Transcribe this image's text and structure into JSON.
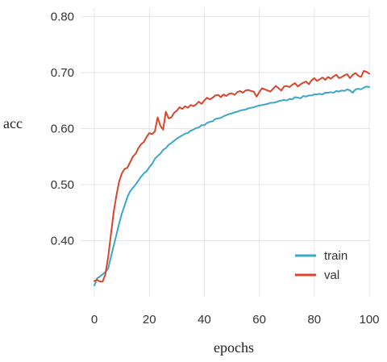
{
  "chart_data": {
    "type": "line",
    "xlabel": "epochs",
    "ylabel": "acc",
    "xlim": [
      -5,
      100
    ],
    "ylim": [
      0.3,
      0.815
    ],
    "xticks": [
      0,
      20,
      40,
      60,
      80,
      100
    ],
    "yticks": [
      0.4,
      0.5,
      0.6,
      0.7,
      0.8
    ],
    "xtick_labels": [
      "0",
      "20",
      "40",
      "60",
      "80",
      "100"
    ],
    "ytick_labels": [
      "0.40",
      "0.50",
      "0.60",
      "0.70",
      "0.80"
    ],
    "grid": true,
    "legend": "bottom-right",
    "series": [
      {
        "name": "train",
        "color": "#3aa7c9",
        "x": [
          0,
          1,
          2,
          3,
          4,
          5,
          6,
          7,
          8,
          9,
          10,
          11,
          12,
          13,
          14,
          15,
          16,
          17,
          18,
          19,
          20,
          21,
          22,
          23,
          24,
          25,
          26,
          27,
          28,
          29,
          30,
          31,
          32,
          33,
          34,
          35,
          36,
          37,
          38,
          39,
          40,
          41,
          42,
          43,
          44,
          45,
          46,
          47,
          48,
          49,
          50,
          51,
          52,
          53,
          54,
          55,
          56,
          57,
          58,
          59,
          60,
          61,
          62,
          63,
          64,
          65,
          66,
          67,
          68,
          69,
          70,
          71,
          72,
          73,
          74,
          75,
          76,
          77,
          78,
          79,
          80,
          81,
          82,
          83,
          84,
          85,
          86,
          87,
          88,
          89,
          90,
          91,
          92,
          93,
          94,
          95,
          96,
          97,
          98,
          99,
          100
        ],
        "y": [
          0.32,
          0.333,
          0.336,
          0.34,
          0.344,
          0.35,
          0.37,
          0.39,
          0.41,
          0.43,
          0.448,
          0.463,
          0.478,
          0.488,
          0.494,
          0.5,
          0.507,
          0.514,
          0.52,
          0.524,
          0.531,
          0.537,
          0.546,
          0.551,
          0.555,
          0.562,
          0.565,
          0.571,
          0.574,
          0.578,
          0.582,
          0.585,
          0.588,
          0.591,
          0.592,
          0.596,
          0.598,
          0.601,
          0.602,
          0.606,
          0.606,
          0.61,
          0.612,
          0.613,
          0.617,
          0.618,
          0.619,
          0.622,
          0.624,
          0.626,
          0.627,
          0.629,
          0.63,
          0.632,
          0.633,
          0.634,
          0.636,
          0.637,
          0.638,
          0.64,
          0.641,
          0.642,
          0.643,
          0.644,
          0.646,
          0.646,
          0.647,
          0.649,
          0.65,
          0.651,
          0.65,
          0.653,
          0.652,
          0.656,
          0.655,
          0.654,
          0.658,
          0.657,
          0.659,
          0.659,
          0.661,
          0.661,
          0.662,
          0.661,
          0.664,
          0.664,
          0.665,
          0.664,
          0.667,
          0.666,
          0.668,
          0.667,
          0.67,
          0.668,
          0.664,
          0.67,
          0.671,
          0.67,
          0.673,
          0.675,
          0.674
        ]
      },
      {
        "name": "val",
        "color": "#d9452b",
        "x": [
          0,
          1,
          2,
          3,
          4,
          5,
          6,
          7,
          8,
          9,
          10,
          11,
          12,
          13,
          14,
          15,
          16,
          17,
          18,
          19,
          20,
          21,
          22,
          23,
          24,
          25,
          26,
          27,
          28,
          29,
          30,
          31,
          32,
          33,
          34,
          35,
          36,
          37,
          38,
          39,
          40,
          41,
          42,
          43,
          44,
          45,
          46,
          47,
          48,
          49,
          50,
          51,
          52,
          53,
          54,
          55,
          56,
          57,
          58,
          59,
          60,
          61,
          62,
          63,
          64,
          65,
          66,
          67,
          68,
          69,
          70,
          71,
          72,
          73,
          74,
          75,
          76,
          77,
          78,
          79,
          80,
          81,
          82,
          83,
          84,
          85,
          86,
          87,
          88,
          89,
          90,
          91,
          92,
          93,
          94,
          95,
          96,
          97,
          98,
          99,
          100
        ],
        "y": [
          0.328,
          0.33,
          0.327,
          0.327,
          0.34,
          0.37,
          0.41,
          0.45,
          0.48,
          0.505,
          0.52,
          0.528,
          0.53,
          0.54,
          0.55,
          0.555,
          0.565,
          0.572,
          0.576,
          0.585,
          0.592,
          0.59,
          0.595,
          0.62,
          0.605,
          0.598,
          0.63,
          0.618,
          0.62,
          0.628,
          0.632,
          0.638,
          0.635,
          0.64,
          0.637,
          0.642,
          0.64,
          0.643,
          0.648,
          0.644,
          0.65,
          0.655,
          0.652,
          0.655,
          0.659,
          0.66,
          0.656,
          0.661,
          0.658,
          0.662,
          0.663,
          0.66,
          0.665,
          0.667,
          0.664,
          0.668,
          0.669,
          0.667,
          0.666,
          0.657,
          0.665,
          0.672,
          0.67,
          0.668,
          0.666,
          0.671,
          0.676,
          0.672,
          0.668,
          0.675,
          0.676,
          0.674,
          0.678,
          0.681,
          0.675,
          0.679,
          0.682,
          0.684,
          0.679,
          0.686,
          0.69,
          0.685,
          0.688,
          0.691,
          0.687,
          0.692,
          0.689,
          0.693,
          0.696,
          0.69,
          0.692,
          0.695,
          0.697,
          0.69,
          0.696,
          0.699,
          0.694,
          0.692,
          0.703,
          0.701,
          0.698
        ]
      }
    ]
  }
}
